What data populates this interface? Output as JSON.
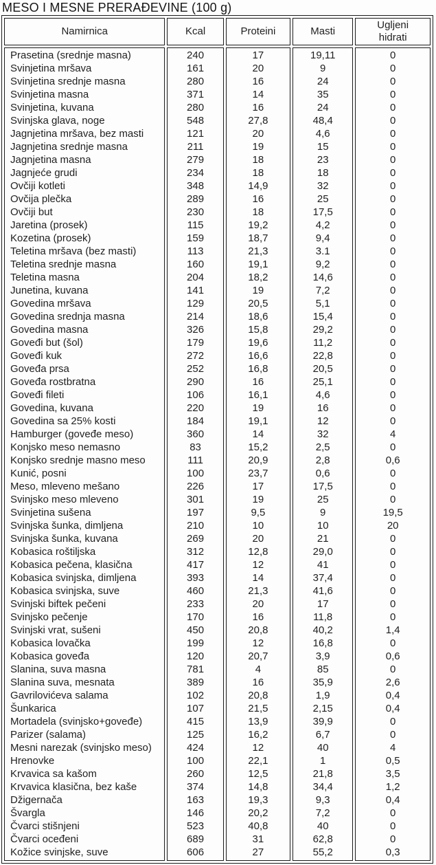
{
  "title": "MESO I MESNE PRERAĐEVINE (100 g)",
  "table": {
    "columns": [
      "Namirnica",
      "Kcal",
      "Proteini",
      "Masti",
      "Ugljeni hidrati"
    ],
    "rows": [
      [
        "Prasetina (srednje masna)",
        "240",
        "17",
        "19,11",
        "0"
      ],
      [
        "Svinjetina mršava",
        "161",
        "20",
        "9",
        "0"
      ],
      [
        "Svinjetina srednje masna",
        "280",
        "16",
        "24",
        "0"
      ],
      [
        "Svinjetina masna",
        "371",
        "14",
        "35",
        "0"
      ],
      [
        "Svinjetina, kuvana",
        "280",
        "16",
        "24",
        "0"
      ],
      [
        "Svinjska glava, noge",
        "548",
        "27,8",
        "48,4",
        "0"
      ],
      [
        "Jagnjetina mršava, bez masti",
        "121",
        "20",
        "4,6",
        "0"
      ],
      [
        "Jagnjetina srednje masna",
        "211",
        "19",
        "15",
        "0"
      ],
      [
        "Jagnjetina masna",
        "279",
        "18",
        "23",
        "0"
      ],
      [
        "Jagnjeće grudi",
        "234",
        "18",
        "18",
        "0"
      ],
      [
        "Ovčiji kotleti",
        "348",
        "14,9",
        "32",
        "0"
      ],
      [
        "Ovčija plečka",
        "289",
        "16",
        "25",
        "0"
      ],
      [
        "Ovčiji but",
        "230",
        "18",
        "17,5",
        "0"
      ],
      [
        "Jaretina (prosek)",
        "115",
        "19,2",
        "4,2",
        "0"
      ],
      [
        "Kozetina (prosek)",
        "159",
        "18,7",
        "9,4",
        "0"
      ],
      [
        "Teletina mršava (bez masti)",
        "113",
        "21,3",
        "3.1",
        "0"
      ],
      [
        "Teletina srednje masna",
        "160",
        "19,1",
        "9,2",
        "0"
      ],
      [
        "Teletina masna",
        "204",
        "18,2",
        "14,6",
        "0"
      ],
      [
        "Junetina, kuvana",
        "141",
        "19",
        "7,2",
        "0"
      ],
      [
        "Govedina mršava",
        "129",
        "20,5",
        "5,1",
        "0"
      ],
      [
        "Govedina srednja masna",
        "214",
        "18,6",
        "15,4",
        "0"
      ],
      [
        "Govedina masna",
        "326",
        "15,8",
        "29,2",
        "0"
      ],
      [
        "Goveđi but (šol)",
        "179",
        "19,6",
        "11,2",
        "0"
      ],
      [
        "Goveđi kuk",
        "272",
        "16,6",
        "22,8",
        "0"
      ],
      [
        "Goveđa prsa",
        "252",
        "16,8",
        "20,5",
        "0"
      ],
      [
        "Goveđa rostbratna",
        "290",
        "16",
        "25,1",
        "0"
      ],
      [
        "Goveđi fileti",
        "106",
        "16,1",
        "4,6",
        "0"
      ],
      [
        "Govedina, kuvana",
        "220",
        "19",
        "16",
        "0"
      ],
      [
        "Govedina sa 25% kosti",
        "184",
        "19,1",
        "12",
        "0"
      ],
      [
        "Hamburger (goveđe meso)",
        "360",
        "14",
        "32",
        "4"
      ],
      [
        "Konjsko meso nemasno",
        "83",
        "15,2",
        "2,5",
        "0"
      ],
      [
        "Konjsko srednje masno meso",
        "111",
        "20,9",
        "2,8",
        "0,6"
      ],
      [
        "Kunić, posni",
        "100",
        "23,7",
        "0,6",
        "0"
      ],
      [
        "Meso, mleveno mešano",
        "226",
        "17",
        "17,5",
        "0"
      ],
      [
        "Svinjsko meso mleveno",
        "301",
        "19",
        "25",
        "0"
      ],
      [
        "Svinjetina sušena",
        "197",
        "9,5",
        "9",
        "19,5"
      ],
      [
        "Svinjska šunka, dimljena",
        "210",
        "10",
        "10",
        "20"
      ],
      [
        "Svinjska šunka, kuvana",
        "269",
        "20",
        "21",
        "0"
      ],
      [
        "Kobasica roštiljska",
        "312",
        "12,8",
        "29,0",
        "0"
      ],
      [
        "Kobasica pečena, klasična",
        "417",
        "12",
        "41",
        "0"
      ],
      [
        "Kobasica svinjska, dimljena",
        "393",
        "14",
        "37,4",
        "0"
      ],
      [
        "Kobasica svinjska, suve",
        "460",
        "21,3",
        "41,6",
        "0"
      ],
      [
        "Svinjski biftek pečeni",
        "233",
        "20",
        "17",
        "0"
      ],
      [
        "Svinjsko pečenje",
        "170",
        "16",
        "11,8",
        "0"
      ],
      [
        "Svinjski vrat, sušeni",
        "450",
        "20,8",
        "40,2",
        "1,4"
      ],
      [
        "Kobasica lovačka",
        "199",
        "12",
        "16,8",
        "0"
      ],
      [
        "Kobasica goveđa",
        "120",
        "20,7",
        "3,9",
        "0,6"
      ],
      [
        "Slanina, suva masna",
        "781",
        "4",
        "85",
        "0"
      ],
      [
        "Slanina suva, mesnata",
        "389",
        "16",
        "35,9",
        "2,6"
      ],
      [
        "Gavrilovićeva salama",
        "102",
        "20,8",
        "1,9",
        "0,4"
      ],
      [
        "Šunkarica",
        "107",
        "21,5",
        "2,15",
        "0,4"
      ],
      [
        "Mortadela (svinjsko+goveđe)",
        "415",
        "13,9",
        "39,9",
        "0"
      ],
      [
        "Parizer (salama)",
        "125",
        "16,2",
        "6,7",
        "0"
      ],
      [
        "Mesni narezak (svinjsko meso)",
        "424",
        "12",
        "40",
        "4"
      ],
      [
        "Hrenovke",
        "100",
        "22,1",
        "1",
        "0,5"
      ],
      [
        "Krvavica sa kašom",
        "260",
        "12,5",
        "21,8",
        "3,5"
      ],
      [
        "Krvavica klasična, bez kaše",
        "374",
        "14,8",
        "34,4",
        "1,2"
      ],
      [
        "Džigernača",
        "163",
        "19,3",
        "9,3",
        "0,4"
      ],
      [
        "Švargla",
        "146",
        "20,2",
        "7,2",
        "0"
      ],
      [
        "Čvarci stišnjeni",
        "523",
        "40,8",
        "40",
        "0"
      ],
      [
        "Čvarci oceđeni",
        "689",
        "31",
        "62,8",
        "0"
      ],
      [
        "Kožice svinjske, suve",
        "606",
        "27",
        "55,2",
        "0,3"
      ]
    ]
  }
}
